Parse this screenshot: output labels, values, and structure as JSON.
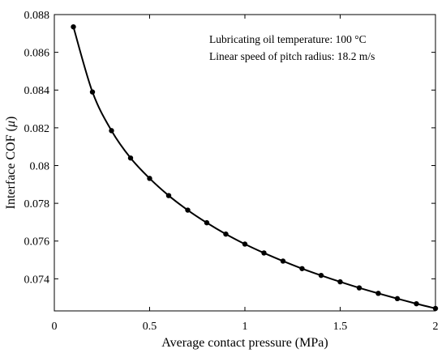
{
  "chart_data": {
    "type": "line",
    "title": "",
    "xlabel": "Average contact pressure (MPa)",
    "ylabel_prefix": "Interface COF (",
    "ylabel_symbol": "μ",
    "ylabel_suffix": ")",
    "xlim": [
      0,
      2
    ],
    "ylim": [
      0.0723,
      0.088
    ],
    "grid": false,
    "x_ticks": [
      0,
      0.5,
      1,
      1.5,
      2
    ],
    "x_tick_labels": [
      "0",
      "0.5",
      "1",
      "1.5",
      "2"
    ],
    "y_ticks": [
      0.074,
      0.076,
      0.078,
      0.08,
      0.082,
      0.084,
      0.086,
      0.088
    ],
    "y_tick_labels": [
      "0.074",
      "0.076",
      "0.078",
      "0.08",
      "0.082",
      "0.084",
      "0.086",
      "0.088"
    ],
    "annotations": [
      "Lubricating oil temperature: 100 °C",
      "Linear speed of pitch radius: 18.2 m/s"
    ],
    "series": [
      {
        "color": "#000000",
        "marker": "circle",
        "x": [
          0.1,
          0.2,
          0.3,
          0.4,
          0.5,
          0.6,
          0.7,
          0.8,
          0.9,
          1.0,
          1.1,
          1.2,
          1.3,
          1.4,
          1.5,
          1.6,
          1.7,
          1.8,
          1.9,
          2.0
        ],
        "values": [
          0.08735,
          0.0839,
          0.08185,
          0.0804,
          0.07932,
          0.07841,
          0.07764,
          0.07697,
          0.07637,
          0.07584,
          0.07537,
          0.07494,
          0.07454,
          0.07418,
          0.07384,
          0.07352,
          0.07323,
          0.07295,
          0.07268,
          0.07243
        ]
      }
    ]
  }
}
